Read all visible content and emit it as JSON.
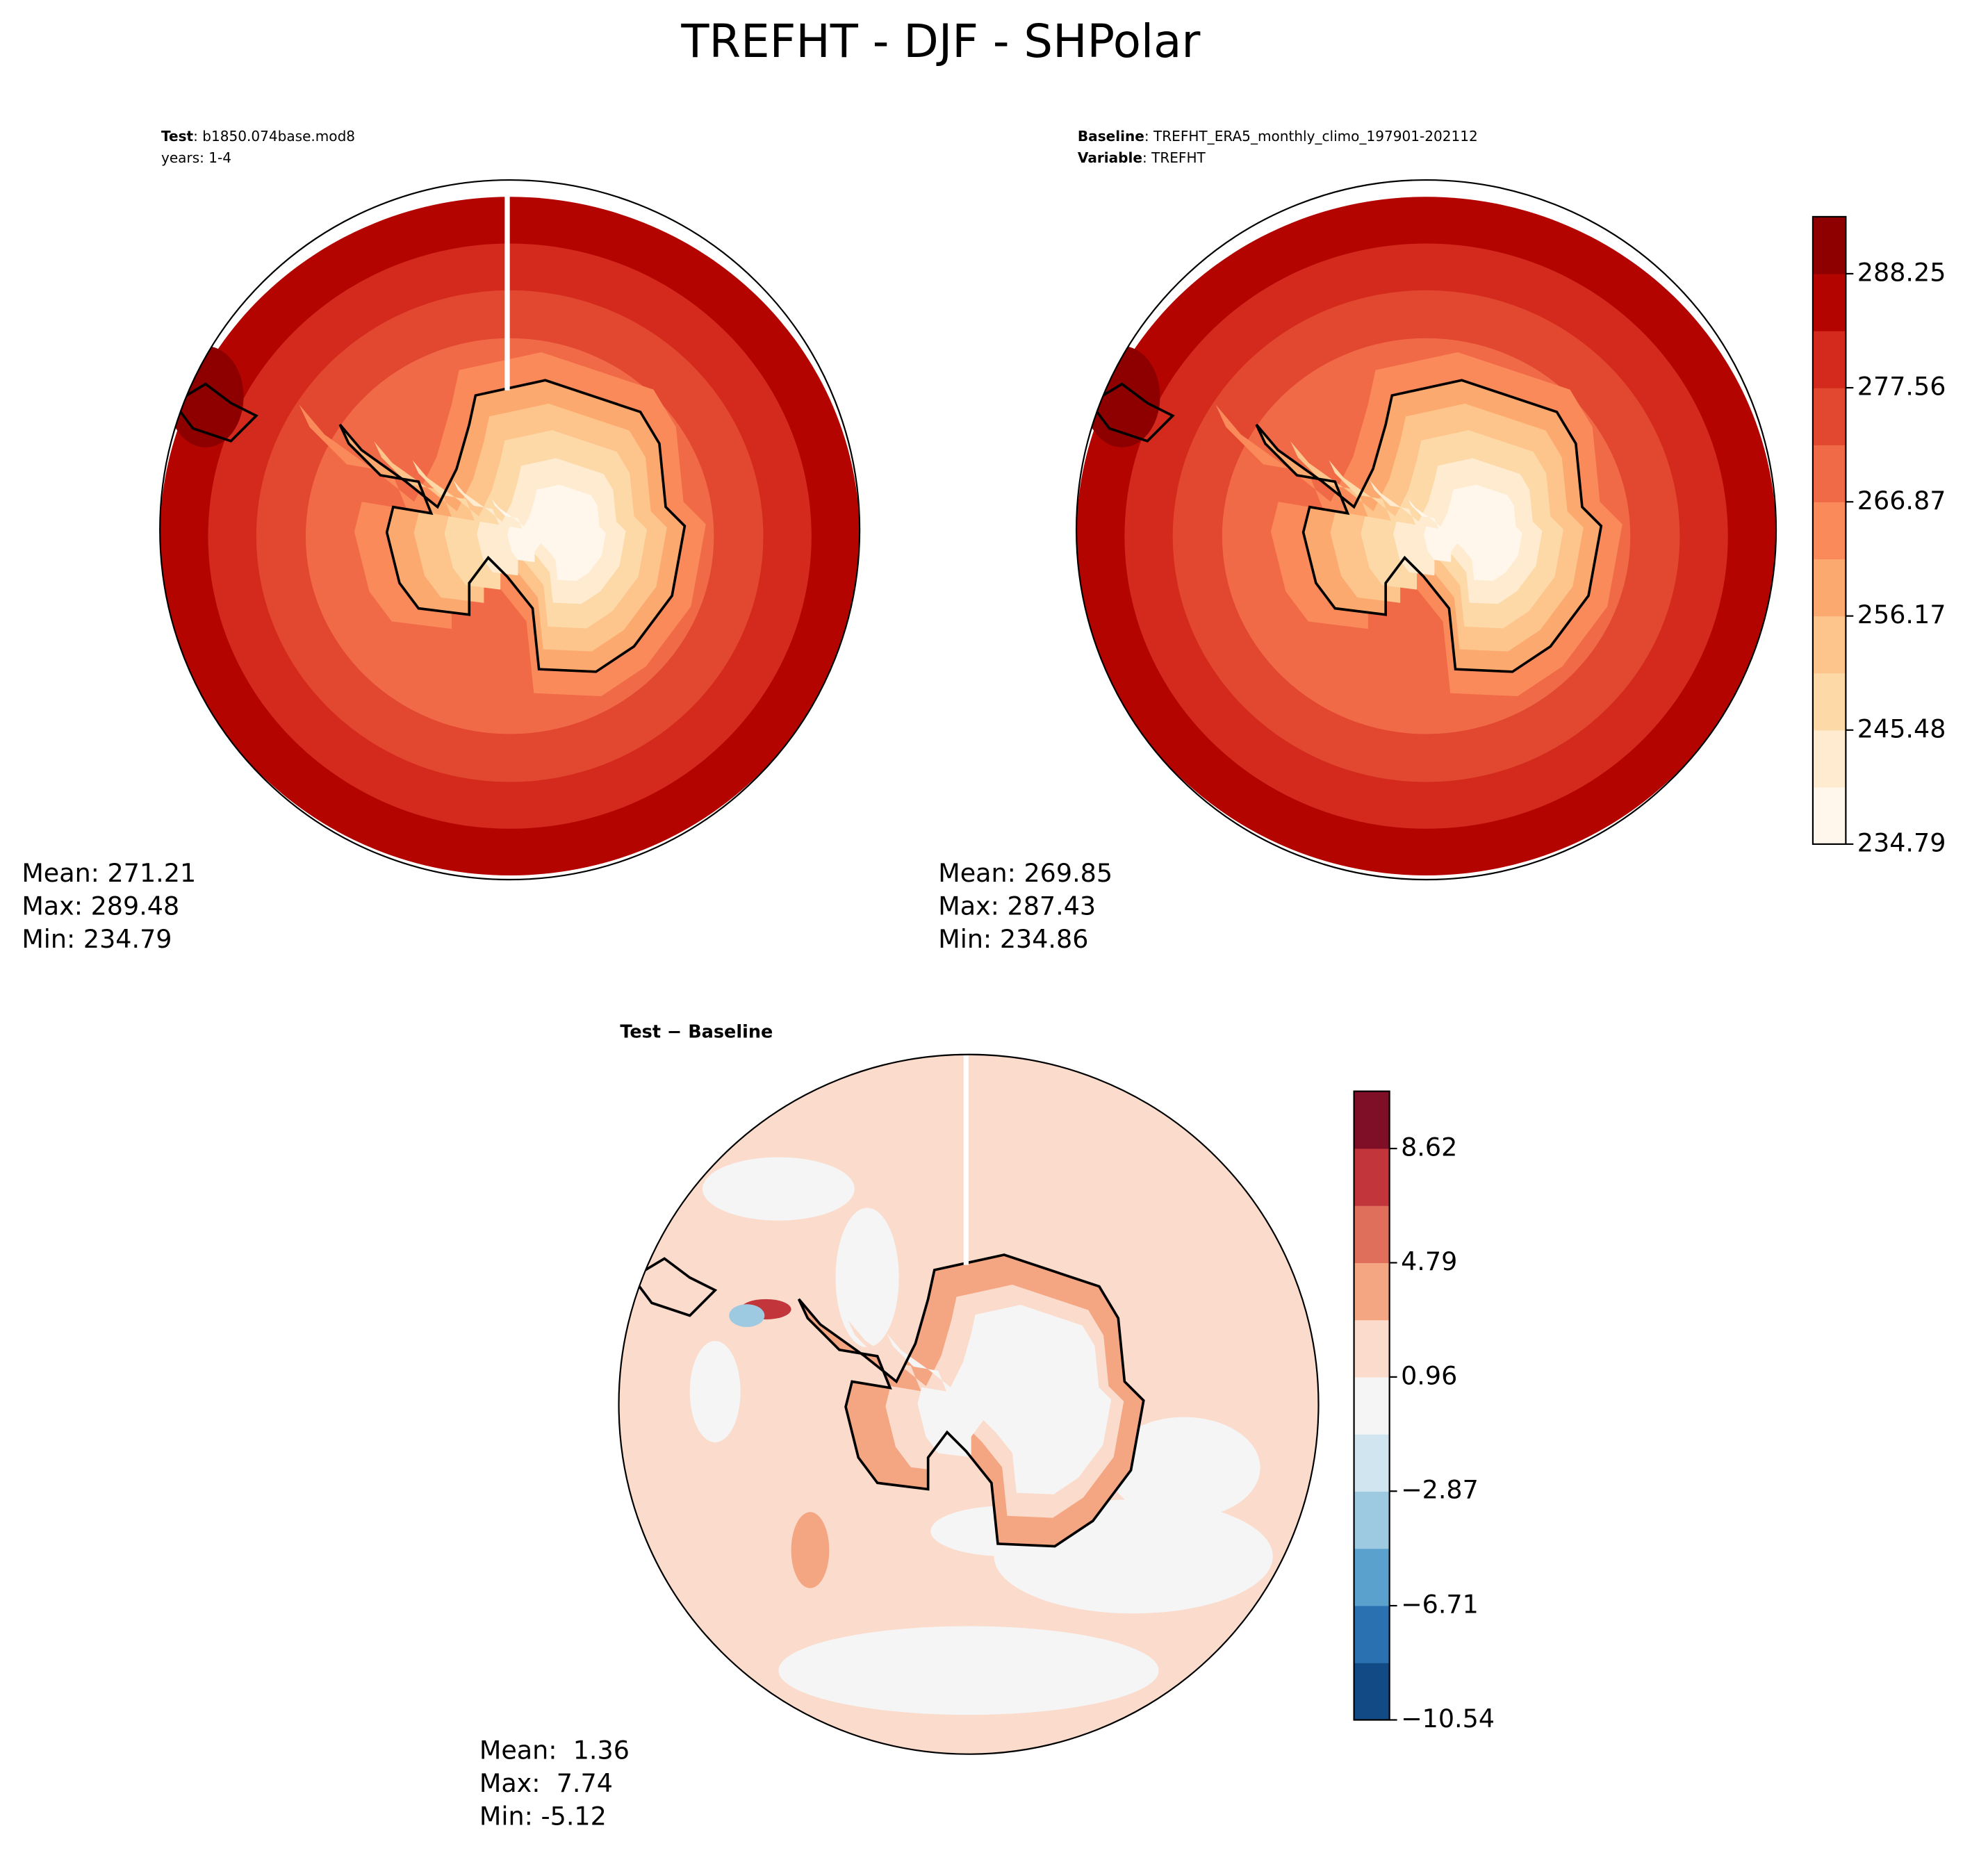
{
  "title": "TREFHT - DJF - SHPolar",
  "chart_data": [
    {
      "type": "contourf",
      "header": [
        {
          "label": "Test",
          "text": ": b1850.074base.mod8"
        },
        {
          "text": "years: 1-4"
        }
      ],
      "stats": [
        "Mean: 271.21",
        "Max: 289.48",
        "Min: 234.79"
      ],
      "colors": [
        "#fff7ec",
        "#feebd0",
        "#fdd9a8",
        "#fdc48b",
        "#fca96f",
        "#fb8a5a",
        "#f16a47",
        "#e2472f",
        "#d32a1d",
        "#b40400",
        "#8e0000"
      ]
    },
    {
      "type": "contourf",
      "header": [
        {
          "label": "Baseline",
          "text": ": TREFHT_ERA5_monthly_climo_197901-202112"
        },
        {
          "label": "Variable",
          "text": ": TREFHT"
        }
      ],
      "stats": [
        "Mean: 269.85",
        "Max: 287.43",
        "Min: 234.86"
      ],
      "colors": [
        "#fff7ec",
        "#feebd0",
        "#fdd9a8",
        "#fdc48b",
        "#fca96f",
        "#fb8a5a",
        "#f16a47",
        "#e2472f",
        "#d32a1d",
        "#b40400",
        "#8e0000"
      ],
      "colorbar": {
        "ylim": [
          234.79,
          293.59
        ],
        "yticks": [
          234.79,
          245.48,
          256.17,
          266.87,
          277.56,
          288.25
        ]
      }
    },
    {
      "type": "contourf",
      "header": [
        {
          "label": "Test − Baseline"
        }
      ],
      "stats": [
        "Mean:  1.36",
        "Max:  7.74",
        "Min: -5.12"
      ],
      "colors": [
        "#124a85",
        "#2a71b2",
        "#5aa2cd",
        "#9ecae1",
        "#d1e5f0",
        "#f5f5f5",
        "#fbdbcb",
        "#f4a582",
        "#df6f5b",
        "#c2363b",
        "#7f0f27"
      ],
      "colorbar": {
        "ylim": [
          -10.54,
          10.54
        ],
        "yticks": [
          {
            "value": -10.54,
            "label": "−10.54"
          },
          {
            "value": -6.71,
            "label": "−6.71"
          },
          {
            "value": -2.87,
            "label": "−2.87"
          },
          0.96,
          4.79,
          8.62
        ]
      }
    }
  ]
}
